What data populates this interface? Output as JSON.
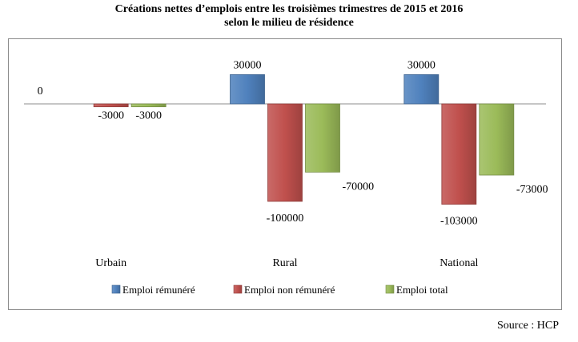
{
  "title_line1": "Créations nettes d’emplois entre les troisièmes trimestres de 2015 et 2016",
  "title_line2": "selon le milieu de résidence",
  "source": "Source : HCP",
  "chart_data": {
    "type": "bar",
    "title": "Créations nettes d’emplois entre les troisièmes trimestres de 2015 et 2016 selon le milieu de résidence",
    "categories": [
      "Urbain",
      "Rural",
      "National"
    ],
    "series": [
      {
        "name": "Emploi rémunéré",
        "values": [
          0,
          30000,
          30000
        ],
        "color": "#4f81bd"
      },
      {
        "name": "Emploi non rémunéré",
        "values": [
          -3000,
          -100000,
          -103000
        ],
        "color": "#c0504d"
      },
      {
        "name": "Emploi total",
        "values": [
          -3000,
          -70000,
          -73000
        ],
        "color": "#9bbb59"
      }
    ],
    "data_labels": [
      [
        "0",
        "-3000",
        "-3000"
      ],
      [
        "30000",
        "-100000",
        "-70000"
      ],
      [
        "30000",
        "-103000",
        "-73000"
      ]
    ],
    "ylim": [
      -110000,
      40000
    ],
    "legend_position": "bottom",
    "grid": false
  }
}
